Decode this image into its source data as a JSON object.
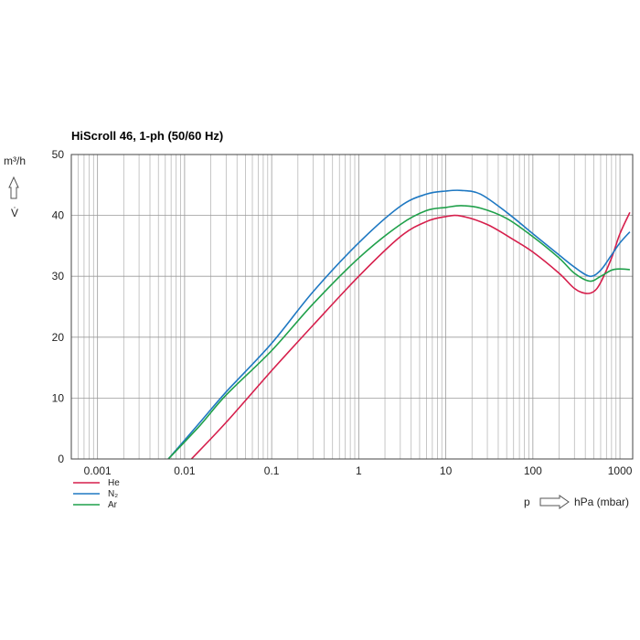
{
  "chart_data": {
    "type": "line",
    "title": "HiScroll 46, 1-ph (50/60 Hz)",
    "y_unit": "m³/h",
    "y_symbol": "V̇",
    "x_symbol": "p",
    "x_unit": "hPa (mbar)",
    "x_scale": "log",
    "xlim": [
      0.0005,
      1400
    ],
    "ylim": [
      0,
      50
    ],
    "x_ticks": [
      {
        "value": 0.001,
        "label": "0.001"
      },
      {
        "value": 0.01,
        "label": "0.01"
      },
      {
        "value": 0.1,
        "label": "0.1"
      },
      {
        "value": 1,
        "label": "1"
      },
      {
        "value": 10,
        "label": "10"
      },
      {
        "value": 100,
        "label": "100"
      },
      {
        "value": 1000,
        "label": "1000"
      }
    ],
    "y_ticks": [
      {
        "value": 0,
        "label": "0"
      },
      {
        "value": 10,
        "label": "10"
      },
      {
        "value": 20,
        "label": "20"
      },
      {
        "value": 30,
        "label": "30"
      },
      {
        "value": 40,
        "label": "40"
      },
      {
        "value": 50,
        "label": "50"
      }
    ],
    "grid": true,
    "legend_position": "bottom-left",
    "series": [
      {
        "name": "He",
        "color": "#d61f4c",
        "points": [
          [
            0.012,
            0
          ],
          [
            0.03,
            6
          ],
          [
            0.1,
            14.5
          ],
          [
            0.3,
            22
          ],
          [
            1,
            30
          ],
          [
            3,
            36.5
          ],
          [
            6,
            39
          ],
          [
            10,
            39.8
          ],
          [
            15,
            39.9
          ],
          [
            30,
            38.5
          ],
          [
            60,
            36
          ],
          [
            100,
            34
          ],
          [
            200,
            30.5
          ],
          [
            300,
            28
          ],
          [
            400,
            27.2
          ],
          [
            500,
            27.5
          ],
          [
            600,
            29
          ],
          [
            800,
            33
          ],
          [
            1000,
            37
          ],
          [
            1300,
            40.5
          ]
        ]
      },
      {
        "name": "N₂",
        "color": "#1e78c2",
        "points": [
          [
            0.0065,
            0
          ],
          [
            0.015,
            6
          ],
          [
            0.03,
            11
          ],
          [
            0.1,
            19
          ],
          [
            0.3,
            27.5
          ],
          [
            1,
            35.5
          ],
          [
            3,
            41.5
          ],
          [
            6,
            43.5
          ],
          [
            10,
            44
          ],
          [
            15,
            44.1
          ],
          [
            25,
            43.5
          ],
          [
            50,
            40.5
          ],
          [
            100,
            37
          ],
          [
            200,
            33.5
          ],
          [
            300,
            31.5
          ],
          [
            450,
            30
          ],
          [
            600,
            31
          ],
          [
            800,
            33.5
          ],
          [
            1000,
            35.5
          ],
          [
            1300,
            37.3
          ]
        ]
      },
      {
        "name": "Ar",
        "color": "#1fa04a",
        "points": [
          [
            0.0065,
            0
          ],
          [
            0.015,
            5.5
          ],
          [
            0.03,
            10.5
          ],
          [
            0.1,
            17.8
          ],
          [
            0.3,
            25.5
          ],
          [
            1,
            33
          ],
          [
            3,
            38.5
          ],
          [
            6,
            40.8
          ],
          [
            10,
            41.3
          ],
          [
            15,
            41.6
          ],
          [
            25,
            41.2
          ],
          [
            50,
            39.5
          ],
          [
            100,
            36.5
          ],
          [
            200,
            33
          ],
          [
            300,
            30.5
          ],
          [
            450,
            29.2
          ],
          [
            600,
            30
          ],
          [
            800,
            31
          ],
          [
            1000,
            31.2
          ],
          [
            1300,
            31.1
          ]
        ]
      }
    ]
  }
}
